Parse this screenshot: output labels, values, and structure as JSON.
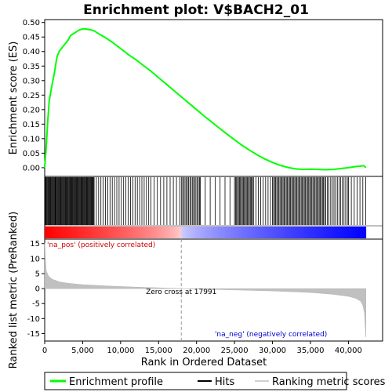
{
  "chart_data": {
    "type": "line",
    "title": "Enrichment plot: V$BACH2_01",
    "xlabel": "Rank in Ordered Dataset",
    "x_ticks": [
      0,
      5000,
      10000,
      15000,
      20000,
      25000,
      30000,
      35000,
      40000
    ],
    "x_tick_labels": [
      "0",
      "5,000",
      "10,000",
      "15,000",
      "20,000",
      "25,000",
      "30,000",
      "35,000",
      "40,000"
    ],
    "xlim": [
      0,
      44500
    ],
    "n_genes": 42300,
    "top_panel": {
      "ylabel": "Enrichment score (ES)",
      "ylim": [
        -0.03,
        0.51
      ],
      "y_ticks": [
        0.0,
        0.05,
        0.1,
        0.15,
        0.2,
        0.25,
        0.3,
        0.35,
        0.4,
        0.45,
        0.5
      ],
      "y_tick_labels": [
        "0.00",
        "0.05",
        "0.10",
        "0.15",
        "0.20",
        "0.25",
        "0.30",
        "0.35",
        "0.40",
        "0.45",
        "0.50"
      ],
      "series": [
        {
          "name": "Enrichment profile",
          "color": "#00ff00",
          "x": [
            0,
            200,
            400,
            600,
            800,
            1000,
            1300,
            1600,
            1900,
            2200,
            2500,
            2800,
            3100,
            3400,
            3700,
            4000,
            4300,
            4600,
            5000,
            5400,
            5800,
            6200,
            6600,
            7000,
            8000,
            9000,
            10000,
            11000,
            12000,
            13000,
            14000,
            15000,
            16000,
            17000,
            18000,
            19000,
            20000,
            21000,
            22000,
            23000,
            24000,
            25000,
            26000,
            27000,
            28000,
            29000,
            30000,
            31000,
            32000,
            33000,
            34000,
            35000,
            36000,
            37000,
            38000,
            39000,
            40000,
            40500,
            41000,
            41500,
            42000,
            42300
          ],
          "y": [
            0.0,
            0.07,
            0.16,
            0.23,
            0.26,
            0.29,
            0.33,
            0.38,
            0.4,
            0.41,
            0.42,
            0.43,
            0.44,
            0.455,
            0.46,
            0.465,
            0.47,
            0.475,
            0.478,
            0.478,
            0.476,
            0.474,
            0.47,
            0.463,
            0.448,
            0.43,
            0.41,
            0.39,
            0.372,
            0.352,
            0.332,
            0.31,
            0.288,
            0.266,
            0.244,
            0.222,
            0.2,
            0.178,
            0.157,
            0.136,
            0.116,
            0.096,
            0.077,
            0.06,
            0.044,
            0.03,
            0.018,
            0.008,
            0.001,
            -0.004,
            -0.006,
            -0.005,
            -0.006,
            -0.007,
            -0.006,
            -0.003,
            0.0,
            0.002,
            0.004,
            0.005,
            0.007,
            0.0
          ]
        }
      ]
    },
    "hits_panel": {
      "hit_color": "#000000",
      "hit_density": [
        {
          "start": 0,
          "end": 6500,
          "step": 90
        },
        {
          "start": 6500,
          "end": 14000,
          "step": 300
        },
        {
          "start": 14000,
          "end": 18000,
          "step": 420
        },
        {
          "start": 18000,
          "end": 20500,
          "step": 160
        },
        {
          "start": 20500,
          "end": 25000,
          "step": 650
        },
        {
          "start": 25000,
          "end": 27500,
          "step": 130
        },
        {
          "start": 27500,
          "end": 30000,
          "step": 320
        },
        {
          "start": 30000,
          "end": 37000,
          "step": 140
        },
        {
          "start": 37000,
          "end": 40000,
          "step": 220
        },
        {
          "start": 40000,
          "end": 42300,
          "step": 380
        }
      ],
      "color_bar": {
        "positive_color": "#ff0000",
        "negative_color": "#0000ff"
      }
    },
    "bottom_panel": {
      "ylabel": "Ranked list metric (PreRanked)",
      "ylim": [
        -17.5,
        16.5
      ],
      "y_ticks": [
        -15,
        -10,
        -5,
        0,
        5,
        10,
        15
      ],
      "y_tick_labels": [
        "-15",
        "-10",
        "-5",
        "0",
        "5",
        "10",
        "15"
      ],
      "fill_color": "#c0c0c0",
      "metric_x": [
        0,
        200,
        500,
        1000,
        2000,
        3000,
        5000,
        8000,
        12000,
        15000,
        17991,
        21000,
        25000,
        30000,
        35000,
        38000,
        40000,
        41000,
        41600,
        41900,
        42100,
        42300
      ],
      "metric_y": [
        15.2,
        6.0,
        4.2,
        3.1,
        2.2,
        1.8,
        1.3,
        0.9,
        0.5,
        0.25,
        0.0,
        -0.2,
        -0.45,
        -0.8,
        -1.3,
        -1.9,
        -2.6,
        -3.3,
        -4.2,
        -5.6,
        -8.0,
        -16.2
      ],
      "zero_cross_x": 17991,
      "annotations": {
        "pos": "'na_pos' (positively correlated)",
        "neg": "'na_neg' (negatively correlated)",
        "zero": "Zero cross at 17991"
      }
    },
    "legend": {
      "placement": "bottom",
      "items": [
        {
          "label": "Enrichment profile",
          "color": "#00ff00"
        },
        {
          "label": "Hits",
          "color": "#000000"
        },
        {
          "label": "Ranking metric scores",
          "color": "#c0c0c0"
        }
      ]
    }
  }
}
